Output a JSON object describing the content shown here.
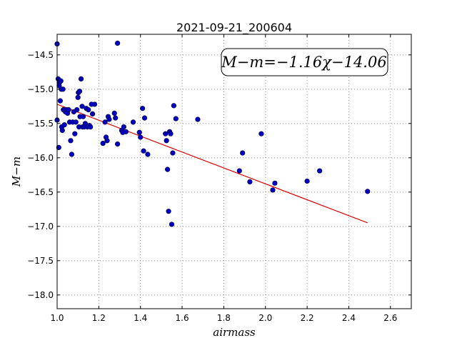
{
  "chart_data": {
    "type": "scatter",
    "title": "2021-09-21_200604",
    "xlabel": "airmass",
    "ylabel": "M−m",
    "xlim": [
      1.0,
      2.7
    ],
    "ylim": [
      -18.2,
      -14.2
    ],
    "y_inverted": true,
    "grid": true,
    "xticks": [
      1.0,
      1.2,
      1.4,
      1.6,
      1.8,
      2.0,
      2.2,
      2.4,
      2.6
    ],
    "xtick_labels": [
      "1.0",
      "1.2",
      "1.4",
      "1.6",
      "1.8",
      "2.0",
      "2.2",
      "2.4",
      "2.6"
    ],
    "yticks": [
      -14.5,
      -15.0,
      -15.5,
      -16.0,
      -16.5,
      -17.0,
      -17.5,
      -18.0
    ],
    "ytick_labels": [
      "−14.5",
      "−15.0",
      "−15.5",
      "−16.0",
      "−16.5",
      "−17.0",
      "−17.5",
      "−18.0"
    ],
    "annotation": "M−m=−1.16χ−14.06",
    "annotation_location": "top-right",
    "point_color": "#0000bf",
    "fit_color": "#e00000",
    "fit_line": {
      "slope": -1.16,
      "intercept": -14.06,
      "x_range": [
        1.0,
        2.49
      ]
    },
    "points": {
      "x": [
        1.0,
        1.0,
        1.005,
        1.008,
        1.01,
        1.012,
        1.015,
        1.018,
        1.02,
        1.022,
        1.025,
        1.028,
        1.03,
        1.032,
        1.035,
        1.04,
        1.045,
        1.05,
        1.055,
        1.06,
        1.065,
        1.07,
        1.075,
        1.08,
        1.085,
        1.09,
        1.095,
        1.1,
        1.102,
        1.105,
        1.108,
        1.11,
        1.115,
        1.12,
        1.122,
        1.125,
        1.13,
        1.135,
        1.14,
        1.145,
        1.15,
        1.155,
        1.16,
        1.165,
        1.17,
        1.18,
        1.22,
        1.23,
        1.235,
        1.24,
        1.245,
        1.25,
        1.275,
        1.28,
        1.29,
        1.29,
        1.31,
        1.315,
        1.32,
        1.33,
        1.365,
        1.395,
        1.4,
        1.41,
        1.415,
        1.42,
        1.435,
        1.52,
        1.525,
        1.53,
        1.535,
        1.54,
        1.545,
        1.55,
        1.555,
        1.56,
        1.57,
        1.675,
        1.875,
        1.89,
        1.925,
        1.98,
        2.035,
        2.045,
        2.2,
        2.26,
        2.49
      ],
      "y": [
        -14.34,
        -15.45,
        -14.85,
        -15.85,
        -14.95,
        -14.9,
        -15.17,
        -14.88,
        -15.0,
        -15.55,
        -15.6,
        -15.0,
        -15.3,
        -15.3,
        -15.52,
        -15.33,
        -15.3,
        -15.35,
        -15.3,
        -15.48,
        -15.75,
        -15.95,
        -15.48,
        -15.33,
        -15.65,
        -15.48,
        -15.3,
        -15.12,
        -15.05,
        -15.55,
        -15.03,
        -15.4,
        -14.85,
        -15.25,
        -15.55,
        -15.4,
        -15.55,
        -15.5,
        -15.28,
        -15.55,
        -15.3,
        -15.53,
        -15.55,
        -15.22,
        -15.36,
        -15.22,
        -15.79,
        -15.48,
        -15.7,
        -15.75,
        -15.4,
        -15.44,
        -15.35,
        -15.42,
        -15.8,
        -14.33,
        -15.6,
        -15.63,
        -15.55,
        -15.62,
        -15.48,
        -15.63,
        -15.7,
        -15.28,
        -15.9,
        -15.42,
        -15.95,
        -15.65,
        -15.75,
        -16.17,
        -16.78,
        -15.62,
        -15.65,
        -16.97,
        -15.93,
        -15.24,
        -15.43,
        -15.44,
        -16.19,
        -15.93,
        -16.35,
        -15.65,
        -16.47,
        -16.37,
        -16.34,
        -16.19,
        -16.49
      ]
    }
  }
}
